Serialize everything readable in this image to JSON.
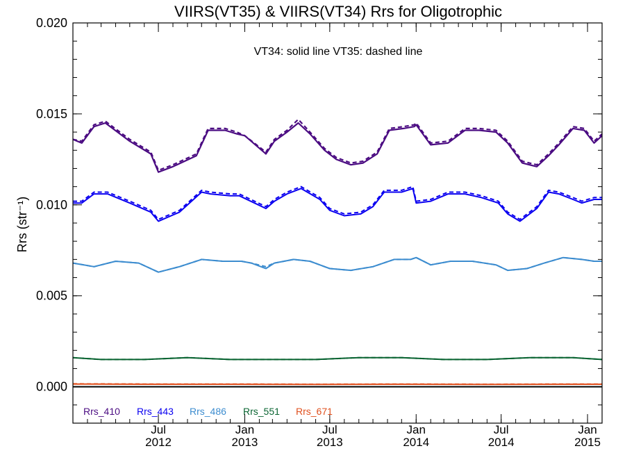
{
  "chart_data": {
    "type": "line",
    "title": "VIIRS(VT35) & VIIRS(VT34)  Rrs for Oligotrophic",
    "annotation": "VT34: solid line   VT35: dashed line",
    "ylabel": "Rrs (str⁻¹)",
    "xlabel": "",
    "ylim": [
      -0.002,
      0.02
    ],
    "xlim": [
      "2012-01-01",
      "2015-02-01"
    ],
    "grid": false,
    "y_ticks": [
      "0.000",
      "0.005",
      "0.010",
      "0.015",
      "0.020"
    ],
    "y_tick_values": [
      0.0,
      0.005,
      0.01,
      0.015,
      0.02
    ],
    "x_ticks": [
      {
        "date": "2012-07-01",
        "month": "Jul",
        "year": "2012"
      },
      {
        "date": "2013-01-01",
        "month": "Jan",
        "year": "2013"
      },
      {
        "date": "2013-07-01",
        "month": "Jul",
        "year": "2013"
      },
      {
        "date": "2014-01-01",
        "month": "Jan",
        "year": "2014"
      },
      {
        "date": "2014-07-01",
        "month": "Jul",
        "year": "2014"
      },
      {
        "date": "2015-01-01",
        "month": "Jan",
        "year": "2015"
      }
    ],
    "legend_placement": "bottom-left",
    "series": [
      {
        "name": "Rrs_410",
        "color": "#4b0c82",
        "x": [
          "2012-01-01",
          "2012-01-20",
          "2012-02-15",
          "2012-03-10",
          "2012-05-01",
          "2012-06-15",
          "2012-07-01",
          "2012-08-01",
          "2012-09-20",
          "2012-10-15",
          "2012-11-20",
          "2012-12-15",
          "2013-01-01",
          "2013-02-15",
          "2013-03-05",
          "2013-04-01",
          "2013-04-25",
          "2013-05-20",
          "2013-06-20",
          "2013-07-15",
          "2013-08-15",
          "2013-09-10",
          "2013-10-10",
          "2013-11-05",
          "2013-12-05",
          "2013-12-28",
          "2014-01-01",
          "2014-02-01",
          "2014-03-10",
          "2014-04-15",
          "2014-05-15",
          "2014-06-20",
          "2014-07-15",
          "2014-08-15",
          "2014-09-15",
          "2014-10-10",
          "2014-11-01",
          "2014-12-01",
          "2014-12-25",
          "2015-01-15",
          "2015-02-01"
        ],
        "vt34": [
          0.0136,
          0.0134,
          0.0143,
          0.0145,
          0.0135,
          0.0128,
          0.0118,
          0.0121,
          0.0127,
          0.0141,
          0.0141,
          0.0139,
          0.0138,
          0.0128,
          0.0135,
          0.014,
          0.0145,
          0.0139,
          0.013,
          0.0125,
          0.0122,
          0.0123,
          0.0128,
          0.0141,
          0.0142,
          0.0143,
          0.0144,
          0.0133,
          0.0134,
          0.0141,
          0.0141,
          0.014,
          0.0134,
          0.0123,
          0.0121,
          0.0127,
          0.0133,
          0.0142,
          0.0141,
          0.0134,
          0.0138
        ],
        "vt35": [
          0.0136,
          0.0135,
          0.0144,
          0.0146,
          0.0136,
          0.0129,
          0.0119,
          0.0122,
          0.0128,
          0.0142,
          0.0142,
          0.014,
          0.0138,
          0.0129,
          0.0136,
          0.0141,
          0.0147,
          0.014,
          0.0131,
          0.0126,
          0.0123,
          0.0124,
          0.0129,
          0.0142,
          0.0143,
          0.0144,
          0.0145,
          0.0134,
          0.0135,
          0.0142,
          0.0142,
          0.0141,
          0.0135,
          0.0124,
          0.0122,
          0.0128,
          0.0134,
          0.0143,
          0.0142,
          0.0135,
          0.0139
        ]
      },
      {
        "name": "Rrs_443",
        "color": "#0a00f0",
        "x": [
          "2012-01-01",
          "2012-01-20",
          "2012-02-15",
          "2012-03-15",
          "2012-05-01",
          "2012-06-15",
          "2012-07-01",
          "2012-08-15",
          "2012-10-01",
          "2012-10-20",
          "2012-12-01",
          "2012-12-20",
          "2013-02-15",
          "2013-03-05",
          "2013-04-01",
          "2013-05-01",
          "2013-06-10",
          "2013-07-01",
          "2013-08-01",
          "2013-09-05",
          "2013-10-01",
          "2013-10-25",
          "2013-12-01",
          "2013-12-25",
          "2014-01-01",
          "2014-02-01",
          "2014-03-10",
          "2014-04-15",
          "2014-05-20",
          "2014-06-25",
          "2014-07-15",
          "2014-08-10",
          "2014-09-15",
          "2014-10-10",
          "2014-11-01",
          "2014-12-01",
          "2014-12-20",
          "2015-01-15",
          "2015-02-01"
        ],
        "vt34": [
          0.0101,
          0.0101,
          0.0106,
          0.0106,
          0.0101,
          0.0096,
          0.0091,
          0.0096,
          0.0107,
          0.0106,
          0.0105,
          0.0105,
          0.0098,
          0.0102,
          0.0106,
          0.0109,
          0.0103,
          0.0097,
          0.0094,
          0.0095,
          0.0099,
          0.0107,
          0.0107,
          0.0109,
          0.0101,
          0.0102,
          0.0106,
          0.0106,
          0.0104,
          0.0101,
          0.0095,
          0.0091,
          0.0098,
          0.0107,
          0.0106,
          0.0103,
          0.0101,
          0.0103,
          0.0103
        ],
        "vt35": [
          0.0102,
          0.0102,
          0.0107,
          0.0107,
          0.0102,
          0.0097,
          0.0092,
          0.0097,
          0.0108,
          0.0107,
          0.0106,
          0.0106,
          0.0099,
          0.0103,
          0.0107,
          0.011,
          0.0104,
          0.0098,
          0.0095,
          0.0096,
          0.01,
          0.0108,
          0.0108,
          0.011,
          0.0102,
          0.0103,
          0.0107,
          0.0107,
          0.0105,
          0.0102,
          0.0096,
          0.0092,
          0.0099,
          0.0108,
          0.0107,
          0.0104,
          0.0102,
          0.0104,
          0.0104
        ]
      },
      {
        "name": "Rrs_486",
        "color": "#3c8ccf",
        "x": [
          "2012-01-01",
          "2012-02-15",
          "2012-04-01",
          "2012-05-20",
          "2012-07-01",
          "2012-08-15",
          "2012-10-01",
          "2012-11-15",
          "2012-12-25",
          "2013-01-15",
          "2013-02-15",
          "2013-03-05",
          "2013-04-15",
          "2013-05-20",
          "2013-07-01",
          "2013-08-15",
          "2013-10-01",
          "2013-11-15",
          "2013-12-20",
          "2014-01-01",
          "2014-02-01",
          "2014-03-15",
          "2014-05-01",
          "2014-06-20",
          "2014-07-15",
          "2014-08-25",
          "2014-10-01",
          "2014-11-10",
          "2014-12-20",
          "2015-01-15",
          "2015-02-01"
        ],
        "vt34": [
          0.0068,
          0.0066,
          0.0069,
          0.0068,
          0.0063,
          0.0066,
          0.007,
          0.0069,
          0.0069,
          0.0068,
          0.0065,
          0.0068,
          0.007,
          0.0069,
          0.0065,
          0.0064,
          0.0066,
          0.007,
          0.007,
          0.0071,
          0.0067,
          0.0069,
          0.0069,
          0.0067,
          0.0064,
          0.0065,
          0.0068,
          0.0071,
          0.007,
          0.0069,
          0.0069
        ],
        "vt35": [
          0.0068,
          0.0066,
          0.0069,
          0.0068,
          0.0063,
          0.0066,
          0.007,
          0.0069,
          0.0069,
          0.0068,
          0.0066,
          0.0068,
          0.007,
          0.0069,
          0.0065,
          0.0064,
          0.0066,
          0.007,
          0.007,
          0.0071,
          0.0067,
          0.0069,
          0.0069,
          0.0067,
          0.0064,
          0.0065,
          0.0068,
          0.0071,
          0.007,
          0.0069,
          0.0069
        ]
      },
      {
        "name": "Rrs_551",
        "color": "#0a6432",
        "x": [
          "2012-01-01",
          "2012-03-01",
          "2012-06-01",
          "2012-09-01",
          "2012-12-01",
          "2013-03-01",
          "2013-06-01",
          "2013-09-01",
          "2013-12-01",
          "2014-03-01",
          "2014-06-01",
          "2014-09-01",
          "2014-12-01",
          "2015-02-01"
        ],
        "vt34": [
          0.0016,
          0.0015,
          0.0015,
          0.0016,
          0.0015,
          0.0015,
          0.0015,
          0.0016,
          0.0016,
          0.0015,
          0.0015,
          0.0016,
          0.0016,
          0.0015
        ],
        "vt35": [
          0.0016,
          0.0015,
          0.0015,
          0.0016,
          0.0015,
          0.0015,
          0.0015,
          0.0016,
          0.0016,
          0.0015,
          0.0015,
          0.0016,
          0.0016,
          0.0015
        ]
      },
      {
        "name": "Rrs_671",
        "color": "#e0501e",
        "x": [
          "2012-01-01",
          "2012-06-01",
          "2012-12-01",
          "2013-06-01",
          "2013-12-01",
          "2014-06-01",
          "2014-12-01",
          "2015-02-01"
        ],
        "vt34": [
          0.00015,
          0.00014,
          0.00014,
          0.00013,
          0.00014,
          0.00013,
          0.00014,
          0.00014
        ],
        "vt35": [
          0.00016,
          0.00015,
          0.00015,
          0.00014,
          0.00015,
          0.00014,
          0.00015,
          0.00015
        ]
      }
    ]
  }
}
